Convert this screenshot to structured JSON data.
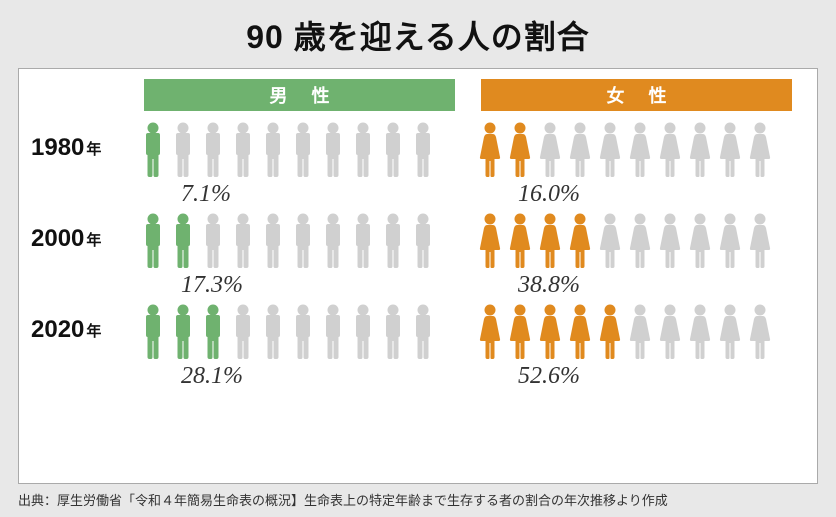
{
  "title": "90 歳を迎える人の割合",
  "title_fontsize": 32,
  "groups": {
    "male": {
      "label": "男性",
      "color": "#6fb26f"
    },
    "female": {
      "label": "女性",
      "color": "#e08a1f"
    }
  },
  "inactive_color": "#d0d0d0",
  "pct_fontsize": 24,
  "group_label_fontsize": 18,
  "icon_total": 10,
  "rows": [
    {
      "year": "1980",
      "year_suffix": "年",
      "male_pct": "7.1%",
      "male_filled": 1,
      "female_pct": "16.0%",
      "female_filled": 2
    },
    {
      "year": "2000",
      "year_suffix": "年",
      "male_pct": "17.3%",
      "male_filled": 2,
      "female_pct": "38.8%",
      "female_filled": 4
    },
    {
      "year": "2020",
      "year_suffix": "年",
      "male_pct": "28.1%",
      "male_filled": 3,
      "female_pct": "52.6%",
      "female_filled": 5
    }
  ],
  "source": "出典：厚生労働省「令和４年簡易生命表の概況】生命表上の特定年齢まで生存する者の割合の年次推移より作成"
}
